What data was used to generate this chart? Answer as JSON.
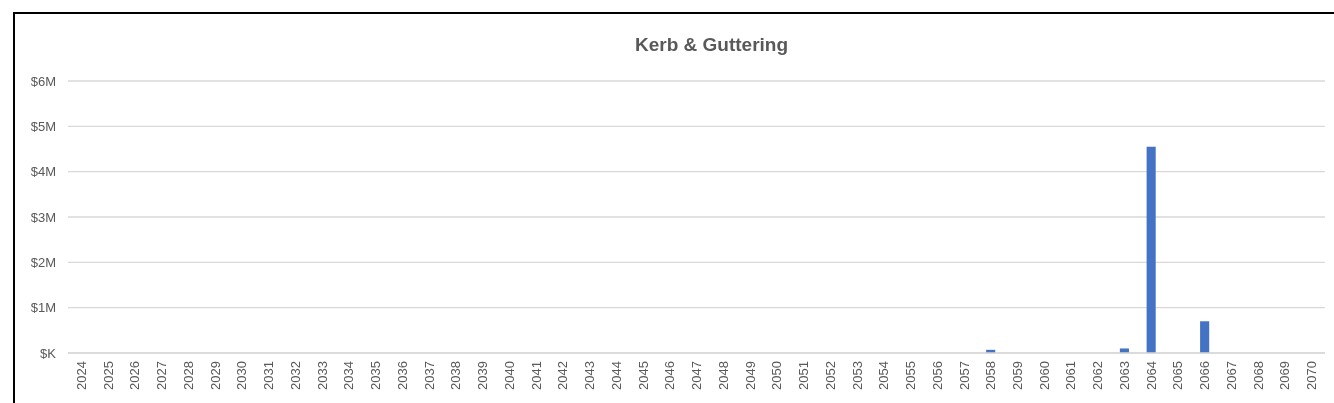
{
  "chart_data": {
    "type": "bar",
    "title": "Kerb & Guttering",
    "categories": [
      "2024",
      "2025",
      "2026",
      "2027",
      "2028",
      "2029",
      "2030",
      "2031",
      "2032",
      "2033",
      "2034",
      "2035",
      "2036",
      "2037",
      "2038",
      "2039",
      "2040",
      "2041",
      "2042",
      "2043",
      "2044",
      "2045",
      "2046",
      "2047",
      "2048",
      "2049",
      "2050",
      "2051",
      "2052",
      "2053",
      "2054",
      "2055",
      "2056",
      "2057",
      "2058",
      "2059",
      "2060",
      "2061",
      "2062",
      "2063",
      "2064",
      "2065",
      "2066",
      "2067",
      "2068",
      "2069",
      "2070"
    ],
    "values": [
      0,
      0,
      0,
      0,
      0,
      0,
      0,
      0,
      0,
      0,
      0,
      0,
      0,
      0,
      0,
      0,
      0,
      0,
      0,
      0,
      0,
      0,
      0,
      0,
      0,
      0,
      0,
      0,
      0,
      0,
      0,
      0,
      0,
      0,
      70000,
      0,
      0,
      0,
      0,
      100000,
      4550000,
      0,
      700000,
      0,
      0,
      0,
      0
    ],
    "color": "#4472c4",
    "ylim": [
      0,
      6000000
    ],
    "yticks": [
      {
        "value": 0,
        "label": "$K"
      },
      {
        "value": 1000000,
        "label": "$1M"
      },
      {
        "value": 2000000,
        "label": "$2M"
      },
      {
        "value": 3000000,
        "label": "$3M"
      },
      {
        "value": 4000000,
        "label": "$4M"
      },
      {
        "value": 5000000,
        "label": "$5M"
      },
      {
        "value": 6000000,
        "label": "$6M"
      }
    ],
    "grid": "y"
  }
}
